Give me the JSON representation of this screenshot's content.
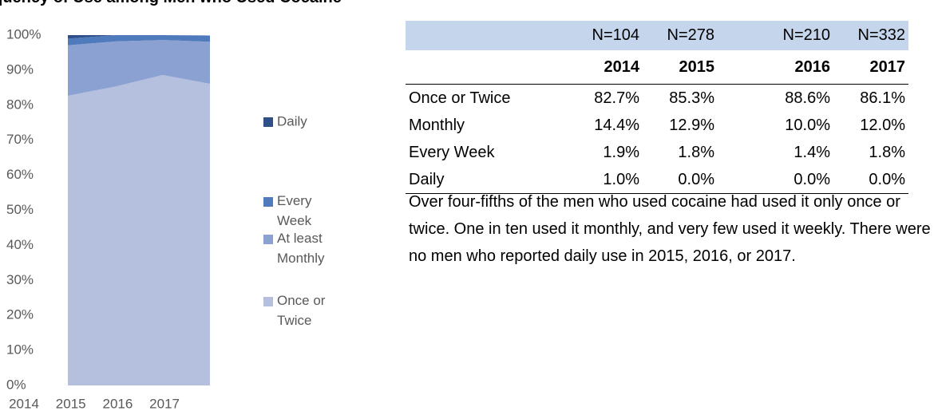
{
  "header": {
    "title": "Frequency of Use among Men who Used Cocaine"
  },
  "chart_data": {
    "type": "area",
    "categories": [
      "2014",
      "2015",
      "2016",
      "2017"
    ],
    "series": [
      {
        "name": "Once or Twice",
        "color": "#b4c0de",
        "values": [
          82.7,
          85.3,
          88.6,
          86.1
        ]
      },
      {
        "name": "At least Monthly",
        "color": "#8aa1d2",
        "values": [
          14.4,
          12.9,
          10.0,
          12.0
        ]
      },
      {
        "name": "Every Week",
        "color": "#4f7bbd",
        "values": [
          1.9,
          1.8,
          1.4,
          1.8
        ]
      },
      {
        "name": "Daily",
        "color": "#2e4f8a",
        "values": [
          1.0,
          0.0,
          0.0,
          0.0
        ]
      }
    ],
    "stacked": true,
    "ylim": [
      0,
      100
    ],
    "yticks": [
      {
        "value": 0,
        "label": "0%"
      },
      {
        "value": 10,
        "label": "10%"
      },
      {
        "value": 20,
        "label": "20%"
      },
      {
        "value": 30,
        "label": "30%"
      },
      {
        "value": 40,
        "label": "40%"
      },
      {
        "value": 50,
        "label": "50%"
      },
      {
        "value": 60,
        "label": "60%"
      },
      {
        "value": 70,
        "label": "70%"
      },
      {
        "value": 80,
        "label": "80%"
      },
      {
        "value": 90,
        "label": "90%"
      },
      {
        "value": 100,
        "label": "100%"
      }
    ],
    "legend": "right"
  },
  "table": {
    "ns": [
      "N=104",
      "N=278",
      "N=210",
      "N=332"
    ],
    "years": [
      "2014",
      "2015",
      "2016",
      "2017"
    ],
    "rows": [
      [
        "Once or Twice",
        "82.7%",
        "85.3%",
        "88.6%",
        "86.1%"
      ],
      [
        "Monthly",
        "14.4%",
        "12.9%",
        "10.0%",
        "12.0%"
      ],
      [
        "Every Week",
        "1.9%",
        "1.8%",
        "1.4%",
        "1.8%"
      ],
      [
        "Daily",
        "1.0%",
        "0.0%",
        "0.0%",
        "0.0%"
      ]
    ]
  },
  "paragraph": "Over four-fifths of the men who used cocaine had used it only once or twice. One in ten used it monthly, and very few used it weekly. There were no men who reported daily use in 2015, 2016, or 2017."
}
